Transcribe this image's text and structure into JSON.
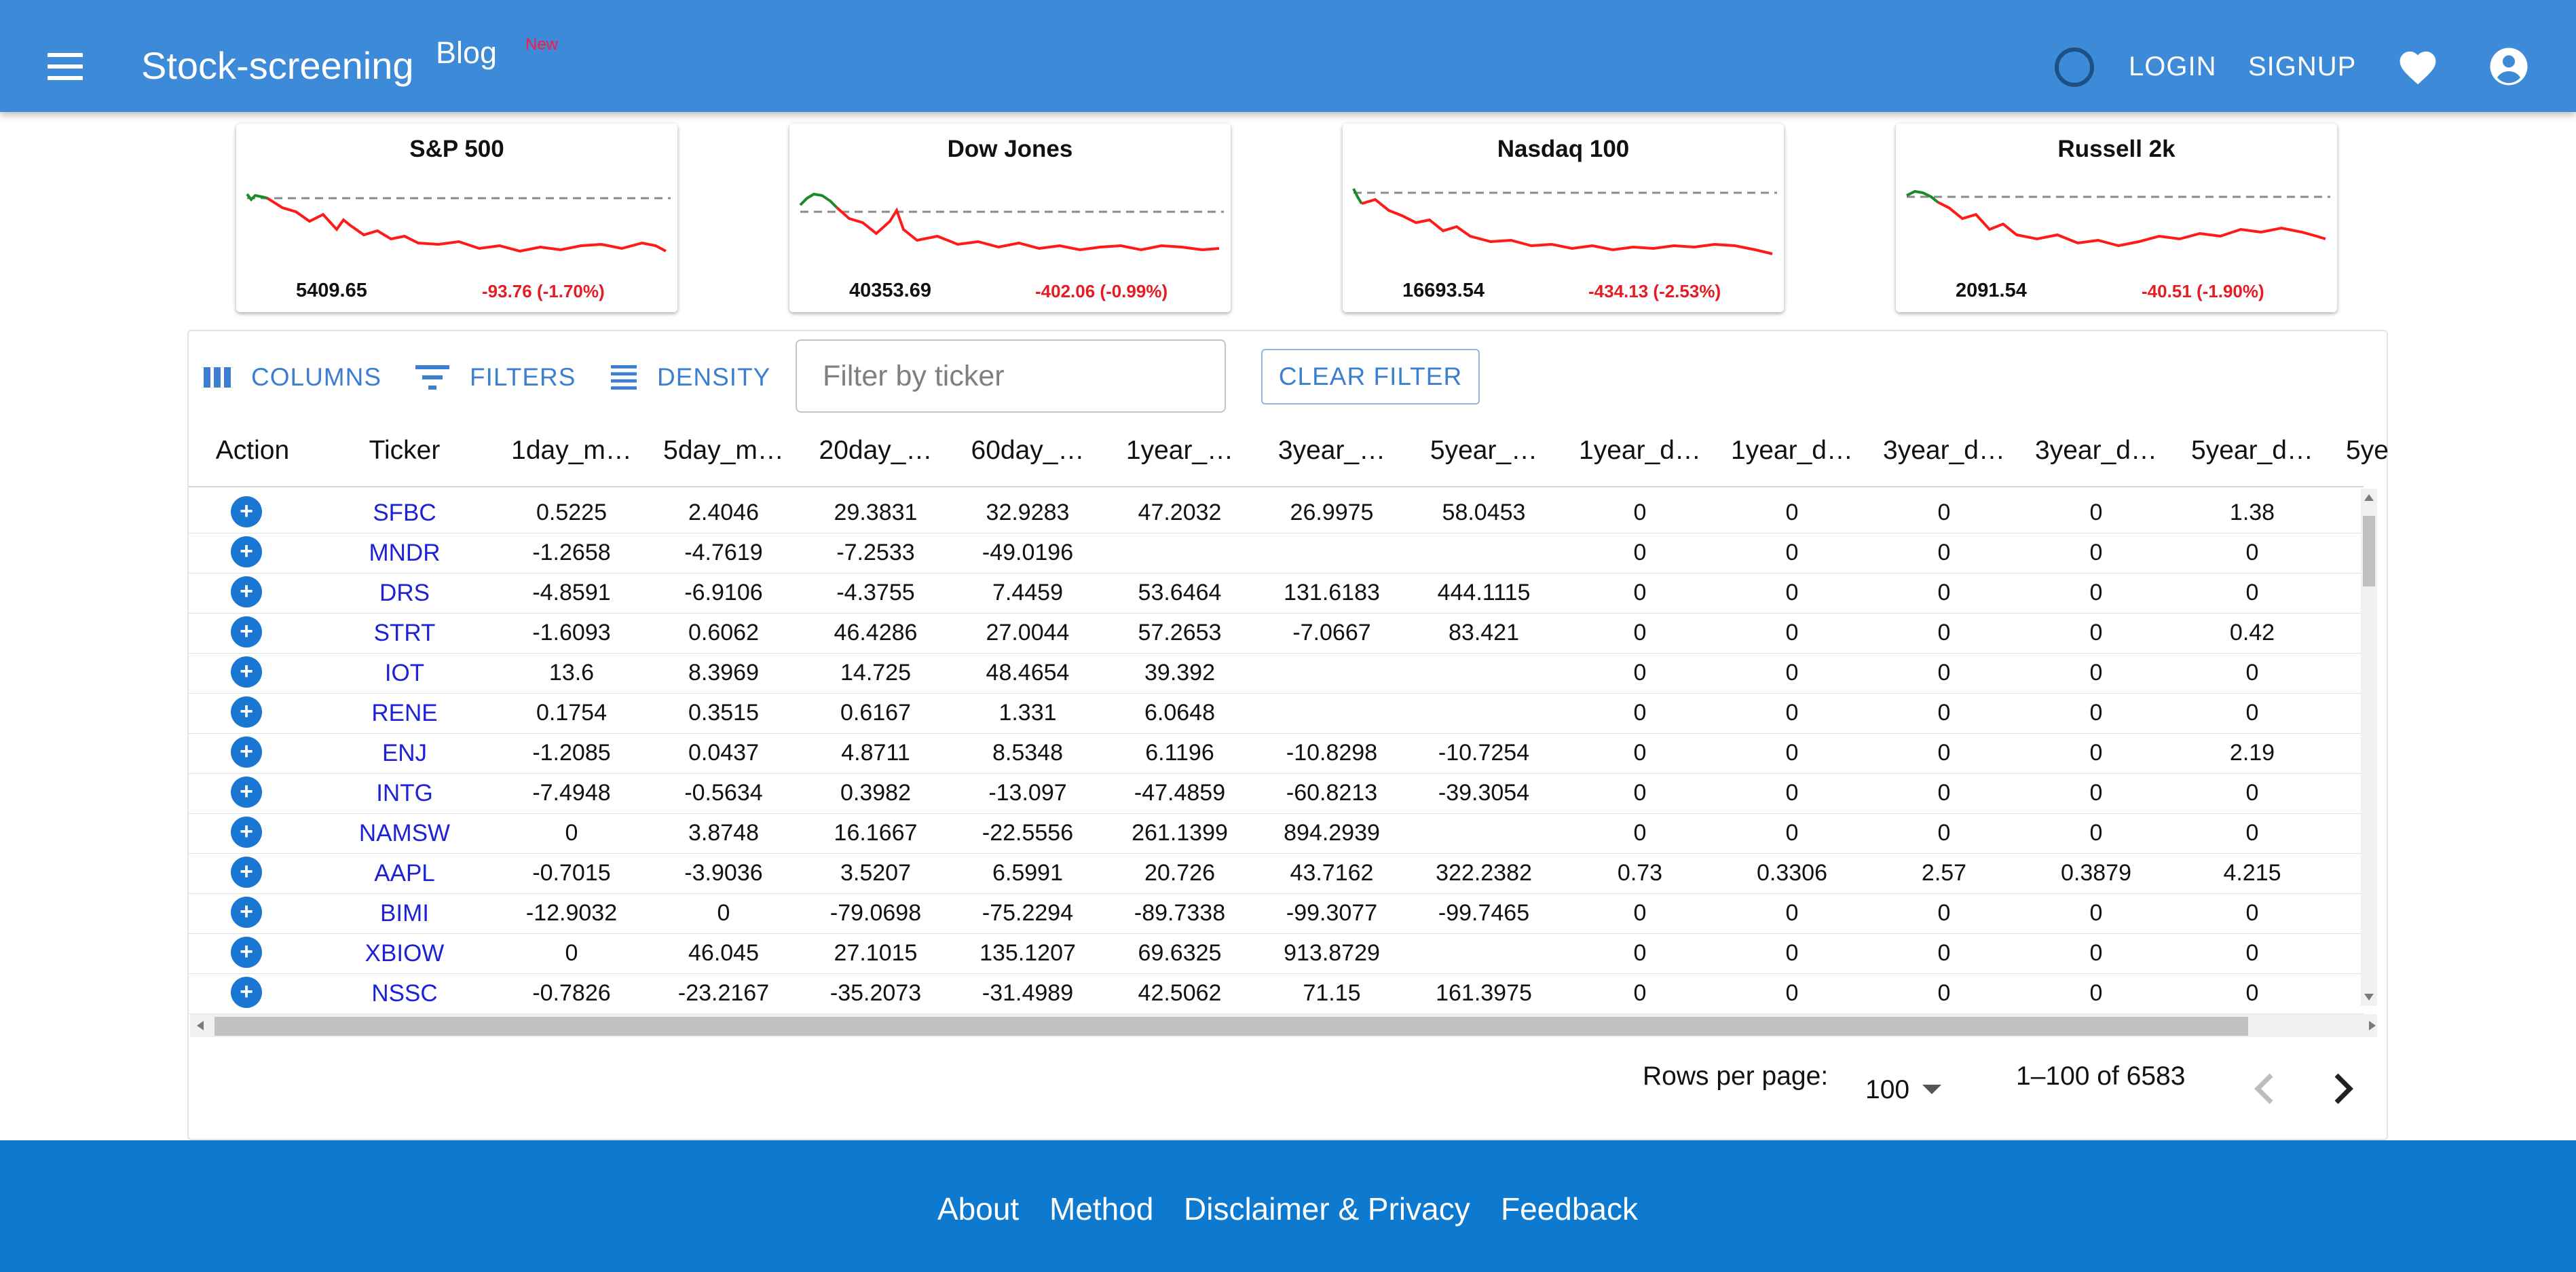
{
  "header": {
    "brand": "Stock-screening",
    "blog": "Blog",
    "new_badge": "New",
    "login": "LOGIN",
    "signup": "SIGNUP",
    "icons": [
      "menu-icon",
      "loading-spinner-icon",
      "heart-icon",
      "account-circle-icon"
    ]
  },
  "indices": [
    {
      "name": "S&P 500",
      "price": "5409.65",
      "change": "-93.76 (-1.70%)"
    },
    {
      "name": "Dow Jones",
      "price": "40353.69",
      "change": "-402.06 (-0.99%)"
    },
    {
      "name": "Nasdaq 100",
      "price": "16693.54",
      "change": "-434.13 (-2.53%)"
    },
    {
      "name": "Russell 2k",
      "price": "2091.54",
      "change": "-40.51 (-1.90%)"
    }
  ],
  "toolbar": {
    "columns": "COLUMNS",
    "filters": "FILTERS",
    "density": "DENSITY",
    "search_placeholder": "Filter by ticker",
    "clear_filter": "CLEAR FILTER"
  },
  "table": {
    "headers": [
      "Action",
      "Ticker",
      "1day_m…",
      "5day_m…",
      "20day_…",
      "60day_…",
      "1year_…",
      "3year_…",
      "5year_…",
      "1year_d…",
      "1year_d…",
      "3year_d…",
      "3year_d…",
      "5year_d…",
      "5ye"
    ],
    "rows": [
      {
        "ticker": "SFBC",
        "values": [
          "0.5225",
          "2.4046",
          "29.3831",
          "32.9283",
          "47.2032",
          "26.9975",
          "58.0453",
          "0",
          "0",
          "0",
          "0",
          "1.38"
        ]
      },
      {
        "ticker": "MNDR",
        "values": [
          "-1.2658",
          "-4.7619",
          "-7.2533",
          "-49.0196",
          "",
          "",
          "",
          "0",
          "0",
          "0",
          "0",
          "0"
        ]
      },
      {
        "ticker": "DRS",
        "values": [
          "-4.8591",
          "-6.9106",
          "-4.3755",
          "7.4459",
          "53.6464",
          "131.6183",
          "444.1115",
          "0",
          "0",
          "0",
          "0",
          "0"
        ]
      },
      {
        "ticker": "STRT",
        "values": [
          "-1.6093",
          "0.6062",
          "46.4286",
          "27.0044",
          "57.2653",
          "-7.0667",
          "83.421",
          "0",
          "0",
          "0",
          "0",
          "0.42"
        ]
      },
      {
        "ticker": "IOT",
        "values": [
          "13.6",
          "8.3969",
          "14.725",
          "48.4654",
          "39.392",
          "",
          "",
          "0",
          "0",
          "0",
          "0",
          "0"
        ]
      },
      {
        "ticker": "RENE",
        "values": [
          "0.1754",
          "0.3515",
          "0.6167",
          "1.331",
          "6.0648",
          "",
          "",
          "0",
          "0",
          "0",
          "0",
          "0"
        ]
      },
      {
        "ticker": "ENJ",
        "values": [
          "-1.2085",
          "0.0437",
          "4.8711",
          "8.5348",
          "6.1196",
          "-10.8298",
          "-10.7254",
          "0",
          "0",
          "0",
          "0",
          "2.19"
        ]
      },
      {
        "ticker": "INTG",
        "values": [
          "-7.4948",
          "-0.5634",
          "0.3982",
          "-13.097",
          "-47.4859",
          "-60.8213",
          "-39.3054",
          "0",
          "0",
          "0",
          "0",
          "0"
        ]
      },
      {
        "ticker": "NAMSW",
        "values": [
          "0",
          "3.8748",
          "16.1667",
          "-22.5556",
          "261.1399",
          "894.2939",
          "",
          "0",
          "0",
          "0",
          "0",
          "0"
        ]
      },
      {
        "ticker": "AAPL",
        "values": [
          "-0.7015",
          "-3.9036",
          "3.5207",
          "6.5991",
          "20.726",
          "43.7162",
          "322.2382",
          "0.73",
          "0.3306",
          "2.57",
          "0.3879",
          "4.215"
        ]
      },
      {
        "ticker": "BIMI",
        "values": [
          "-12.9032",
          "0",
          "-79.0698",
          "-75.2294",
          "-89.7338",
          "-99.3077",
          "-99.7465",
          "0",
          "0",
          "0",
          "0",
          "0"
        ]
      },
      {
        "ticker": "XBIOW",
        "values": [
          "0",
          "46.045",
          "27.1015",
          "135.1207",
          "69.6325",
          "913.8729",
          "",
          "0",
          "0",
          "0",
          "0",
          "0"
        ]
      },
      {
        "ticker": "NSSC",
        "values": [
          "-0.7826",
          "-23.2167",
          "-35.2073",
          "-31.4989",
          "42.5062",
          "71.15",
          "161.3975",
          "0",
          "0",
          "0",
          "0",
          "0"
        ]
      }
    ]
  },
  "pagination": {
    "rows_per_page_label": "Rows per page:",
    "rows_per_page": "100",
    "range": "1–100 of 6583"
  },
  "footer": {
    "links": [
      "About",
      "Method",
      "Disclaimer & Privacy",
      "Feedback"
    ]
  },
  "colors": {
    "appbar": "#3c8ad8",
    "footer": "#0d7ad0",
    "negative": "#e51c23",
    "positive_line": "#1b8a2a",
    "accent": "#1976d2"
  }
}
